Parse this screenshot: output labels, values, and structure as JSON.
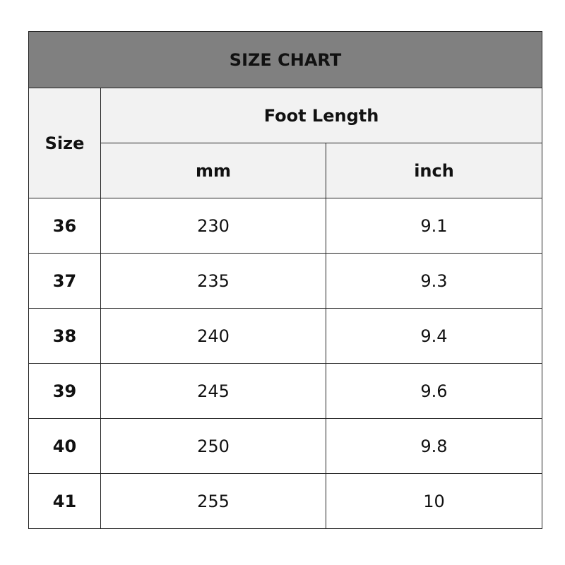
{
  "title": "SIZE CHART",
  "headers": {
    "size": "Size",
    "group": "Foot Length",
    "mm": "mm",
    "inch": "inch"
  },
  "colors": {
    "title_bg": "#808080",
    "header_bg": "#f2f2f2"
  },
  "rows": [
    {
      "size": "36",
      "mm": "230",
      "inch": "9.1"
    },
    {
      "size": "37",
      "mm": "235",
      "inch": "9.3"
    },
    {
      "size": "38",
      "mm": "240",
      "inch": "9.4"
    },
    {
      "size": "39",
      "mm": "245",
      "inch": "9.6"
    },
    {
      "size": "40",
      "mm": "250",
      "inch": "9.8"
    },
    {
      "size": "41",
      "mm": "255",
      "inch": "10"
    }
  ]
}
